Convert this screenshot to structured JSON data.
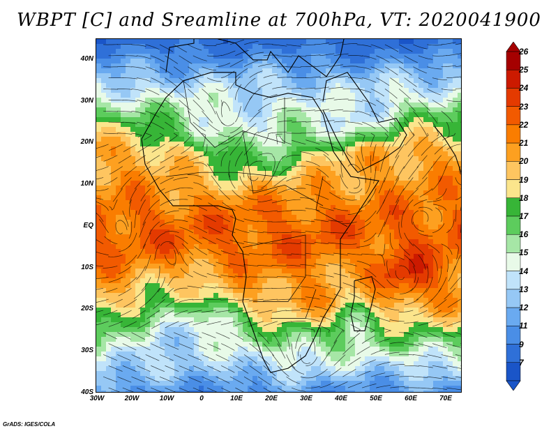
{
  "title": "WBPT [C] and Sreamline at 700hPa, VT: 2020041900",
  "credit": "GrADS: IGES/COLA",
  "map": {
    "lat_labels": [
      "40N",
      "30N",
      "20N",
      "10N",
      "EQ",
      "10S",
      "20S",
      "30S",
      "40S"
    ],
    "lon_labels": [
      "30W",
      "20W",
      "10W",
      "0",
      "10E",
      "20E",
      "30E",
      "40E",
      "50E",
      "60E",
      "70E"
    ],
    "lon_range": [
      -30,
      75
    ],
    "lat_range": [
      -40,
      45
    ]
  },
  "colorbar": {
    "labels": [
      "26",
      "25",
      "24",
      "23",
      "22",
      "21",
      "20",
      "19",
      "18",
      "17",
      "16",
      "15",
      "14",
      "13",
      "12",
      "11",
      "9",
      "7"
    ],
    "colors": [
      "#a50000",
      "#cc1a00",
      "#e43a00",
      "#f25a00",
      "#fa7d00",
      "#fda020",
      "#fec560",
      "#fbe58c",
      "#37b537",
      "#5dcc5d",
      "#a6e6a6",
      "#e8fae8",
      "#c0e3fa",
      "#96c8f5",
      "#6aaaf0",
      "#4a8ee6",
      "#2f70d8",
      "#1a55c8"
    ]
  }
}
